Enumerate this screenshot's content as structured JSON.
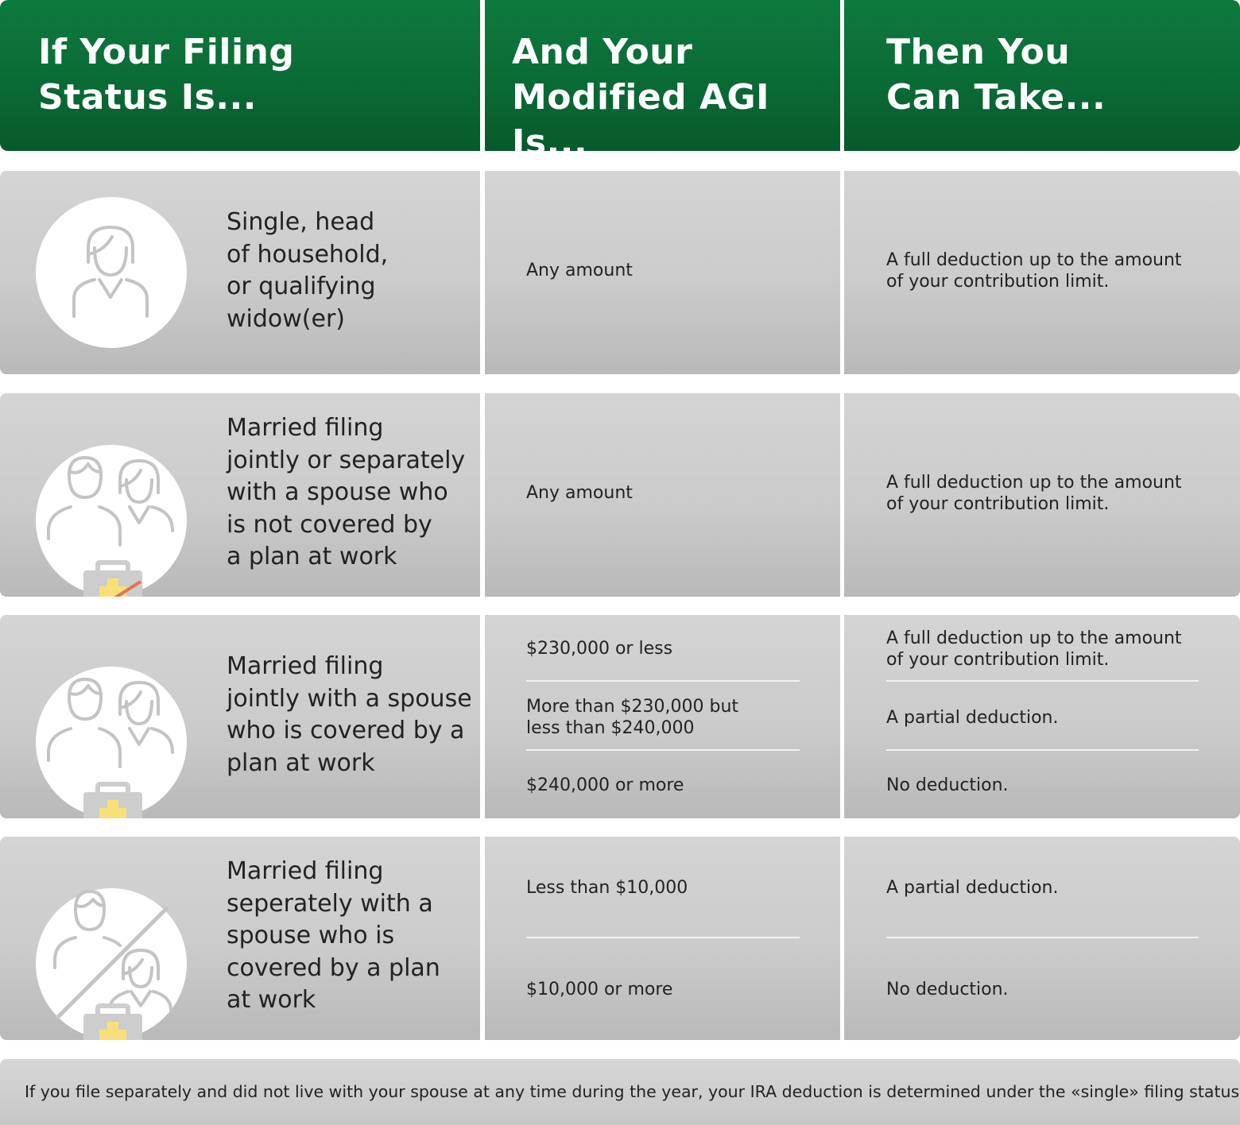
{
  "header": {
    "col1": "If Your Filing\nStatus Is...",
    "col2": "And Your\nModified AGI Is...",
    "col3": "Then You\nCan Take..."
  },
  "rows": [
    {
      "status": "Single, head\nof household,\nor qualifying\nwidow(er)",
      "icon": "single-person-icon",
      "agi": [
        "Any amount"
      ],
      "deduction": [
        "A full deduction up to the amount\nof your contribution limit."
      ]
    },
    {
      "status": "Married filing\njointly or separately\nwith a spouse who\nis not covered by\na plan at work",
      "icon": "couple-no-workplace-plan-icon",
      "agi": [
        "Any amount"
      ],
      "deduction": [
        "A full deduction up to the amount\nof your contribution limit."
      ]
    },
    {
      "status": "Married filing\njointly with a spouse\nwho is covered by a\nplan at work",
      "icon": "couple-workplace-plan-icon",
      "agi": [
        "$230,000 or less",
        "More than $230,000 but\nless than $240,000",
        "$240,000 or more"
      ],
      "deduction": [
        "A full deduction up to the amount\nof your contribution limit.",
        "A partial deduction.",
        "No deduction."
      ]
    },
    {
      "status": "Married filing\nseperately with a\nspouse who is\ncovered by a plan\nat work",
      "icon": "separated-couple-workplace-plan-icon",
      "agi": [
        "Less than $10,000",
        "$10,000 or more"
      ],
      "deduction": [
        "A partial deduction.",
        "No deduction."
      ]
    }
  ],
  "footer": "If you file separately and did not live with your spouse at any time during the year, your IRA deduction is determined under the «single» filing status.",
  "colors": {
    "header_green": "#0a6934",
    "cell_gray": "#cbcbcb",
    "plan_yellow": "#f7e07a",
    "strike_orange": "#e0764c"
  }
}
